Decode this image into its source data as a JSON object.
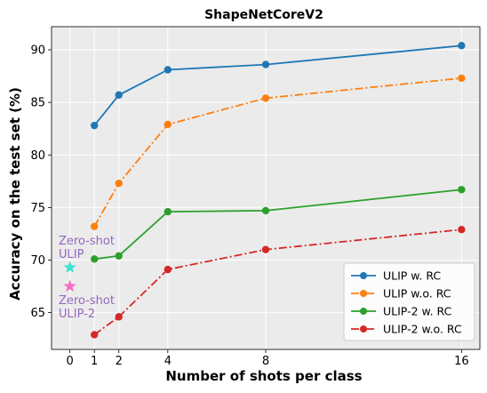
{
  "chart_data": {
    "type": "line",
    "title": "ShapeNetCoreV2",
    "xlabel": "Number of shots per class",
    "ylabel": "Accuracy on the test set (%)",
    "x_ticks": [
      0,
      1,
      2,
      4,
      8,
      16
    ],
    "y_ticks": [
      65,
      70,
      75,
      80,
      85,
      90
    ],
    "ylim": [
      61.5,
      92.2
    ],
    "grid": true,
    "legend_position": "lower-right",
    "series": [
      {
        "name": "ULIP w. RC",
        "color": "#1f77b4",
        "linestyle": "solid",
        "x": [
          1,
          2,
          4,
          8,
          16
        ],
        "y": [
          82.8,
          85.7,
          88.1,
          88.6,
          90.4
        ]
      },
      {
        "name": "ULIP w.o. RC",
        "color": "#ff7f0e",
        "linestyle": "dashdot",
        "x": [
          1,
          2,
          4,
          8,
          16
        ],
        "y": [
          73.2,
          77.3,
          82.9,
          85.4,
          87.3
        ]
      },
      {
        "name": "ULIP-2 w. RC",
        "color": "#2ca02c",
        "linestyle": "solid",
        "x": [
          1,
          2,
          4,
          8,
          16
        ],
        "y": [
          70.1,
          70.4,
          74.6,
          74.7,
          76.7
        ]
      },
      {
        "name": "ULIP-2 w.o. RC",
        "color": "#d62728",
        "linestyle": "dashdot",
        "x": [
          1,
          2,
          4,
          8,
          16
        ],
        "y": [
          62.9,
          64.6,
          69.1,
          71.0,
          72.9
        ]
      }
    ],
    "annotations": [
      {
        "text_line1": "Zero-shot",
        "text_line2": "ULIP",
        "x": 0,
        "y": 69.3,
        "marker": "star",
        "marker_color": "#3fe0d0",
        "text_color": "#9467bd"
      },
      {
        "text_line1": "Zero-shot",
        "text_line2": "ULIP-2",
        "x": 0,
        "y": 67.5,
        "marker": "star",
        "marker_color": "#f46fc3",
        "text_color": "#9467bd"
      }
    ]
  }
}
